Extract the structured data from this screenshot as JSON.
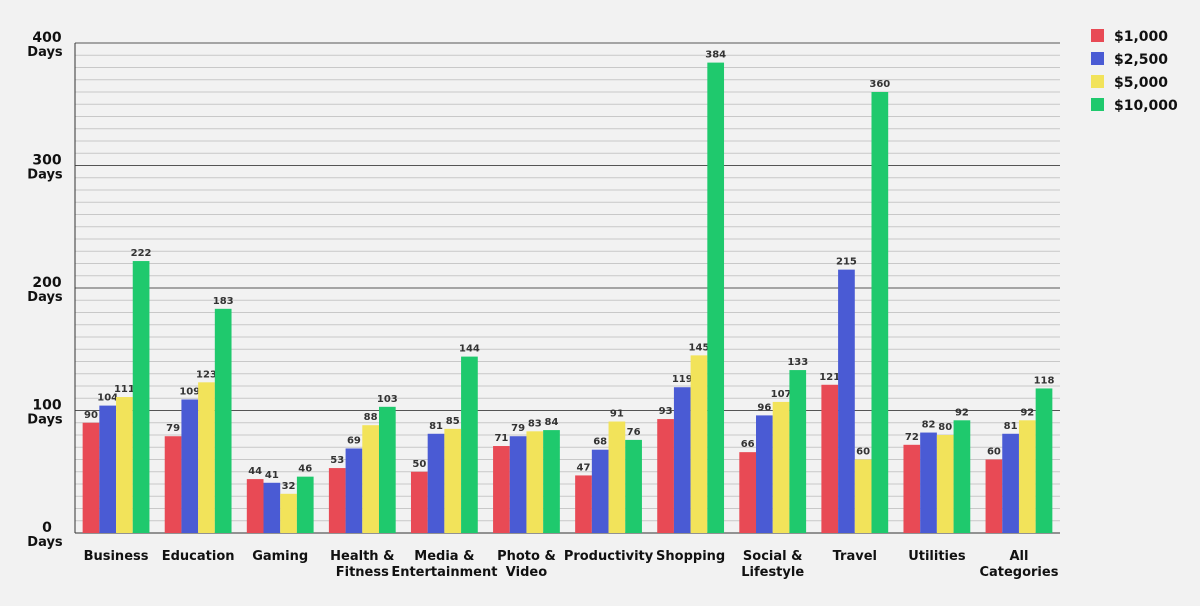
{
  "chart_data": {
    "type": "bar",
    "title": "",
    "xlabel": "",
    "ylabel": "",
    "ylim": [
      0,
      400
    ],
    "y_ticks": [
      {
        "value": 0,
        "num": "0",
        "unit": "Days"
      },
      {
        "value": 100,
        "num": "100",
        "unit": "Days"
      },
      {
        "value": 200,
        "num": "200",
        "unit": "Days"
      },
      {
        "value": 300,
        "num": "300",
        "unit": "Days"
      },
      {
        "value": 400,
        "num": "400",
        "unit": "Days"
      }
    ],
    "grid": true,
    "legend_position": "top-right",
    "categories": [
      [
        "Business"
      ],
      [
        "Education"
      ],
      [
        "Gaming"
      ],
      [
        "Health &",
        "Fitness"
      ],
      [
        "Media &",
        "Entertainment"
      ],
      [
        "Photo &",
        "Video"
      ],
      [
        "Productivity"
      ],
      [
        "Shopping"
      ],
      [
        "Social &",
        "Lifestyle"
      ],
      [
        "Travel"
      ],
      [
        "Utilities"
      ],
      [
        "All",
        "Categories"
      ]
    ],
    "series": [
      {
        "name": "$1,000",
        "color": "#e84a55",
        "values": [
          90,
          79,
          44,
          53,
          50,
          71,
          47,
          93,
          66,
          121,
          72,
          60
        ]
      },
      {
        "name": "$2,500",
        "color": "#4a5bd4",
        "values": [
          104,
          109,
          41,
          69,
          81,
          79,
          68,
          119,
          96,
          215,
          82,
          81
        ]
      },
      {
        "name": "$5,000",
        "color": "#f2e35a",
        "values": [
          111,
          123,
          32,
          88,
          85,
          83,
          91,
          145,
          107,
          60,
          80,
          92
        ]
      },
      {
        "name": "$10,000",
        "color": "#1fc96d",
        "values": [
          222,
          183,
          46,
          103,
          144,
          84,
          76,
          384,
          133,
          360,
          92,
          118
        ]
      }
    ]
  }
}
